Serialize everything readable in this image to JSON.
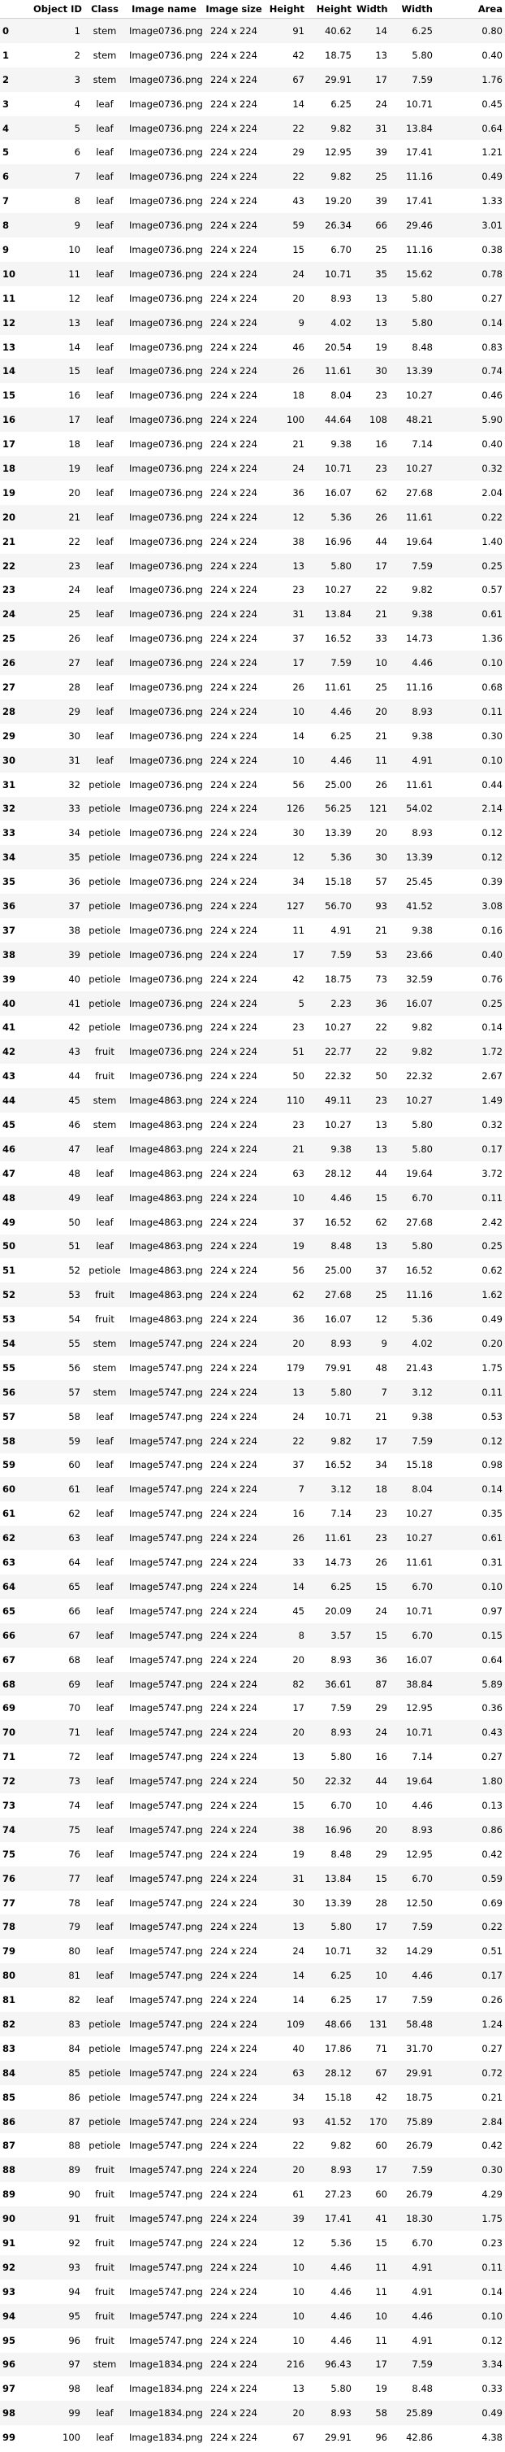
{
  "columns": [
    "",
    "Object ID",
    "Class",
    "Image name",
    "Image size",
    "Height",
    "Height",
    "Width",
    "Width",
    "Area"
  ],
  "rows": [
    [
      "0",
      "1",
      "stem",
      "Image0736.png",
      "224 x 224",
      "91",
      "40.62",
      "14",
      "6.25",
      "0.80"
    ],
    [
      "1",
      "2",
      "stem",
      "Image0736.png",
      "224 x 224",
      "42",
      "18.75",
      "13",
      "5.80",
      "0.40"
    ],
    [
      "2",
      "3",
      "stem",
      "Image0736.png",
      "224 x 224",
      "67",
      "29.91",
      "17",
      "7.59",
      "1.76"
    ],
    [
      "3",
      "4",
      "leaf",
      "Image0736.png",
      "224 x 224",
      "14",
      "6.25",
      "24",
      "10.71",
      "0.45"
    ],
    [
      "4",
      "5",
      "leaf",
      "Image0736.png",
      "224 x 224",
      "22",
      "9.82",
      "31",
      "13.84",
      "0.64"
    ],
    [
      "5",
      "6",
      "leaf",
      "Image0736.png",
      "224 x 224",
      "29",
      "12.95",
      "39",
      "17.41",
      "1.21"
    ],
    [
      "6",
      "7",
      "leaf",
      "Image0736.png",
      "224 x 224",
      "22",
      "9.82",
      "25",
      "11.16",
      "0.49"
    ],
    [
      "7",
      "8",
      "leaf",
      "Image0736.png",
      "224 x 224",
      "43",
      "19.20",
      "39",
      "17.41",
      "1.33"
    ],
    [
      "8",
      "9",
      "leaf",
      "Image0736.png",
      "224 x 224",
      "59",
      "26.34",
      "66",
      "29.46",
      "3.01"
    ],
    [
      "9",
      "10",
      "leaf",
      "Image0736.png",
      "224 x 224",
      "15",
      "6.70",
      "25",
      "11.16",
      "0.38"
    ],
    [
      "10",
      "11",
      "leaf",
      "Image0736.png",
      "224 x 224",
      "24",
      "10.71",
      "35",
      "15.62",
      "0.78"
    ],
    [
      "11",
      "12",
      "leaf",
      "Image0736.png",
      "224 x 224",
      "20",
      "8.93",
      "13",
      "5.80",
      "0.27"
    ],
    [
      "12",
      "13",
      "leaf",
      "Image0736.png",
      "224 x 224",
      "9",
      "4.02",
      "13",
      "5.80",
      "0.14"
    ],
    [
      "13",
      "14",
      "leaf",
      "Image0736.png",
      "224 x 224",
      "46",
      "20.54",
      "19",
      "8.48",
      "0.83"
    ],
    [
      "14",
      "15",
      "leaf",
      "Image0736.png",
      "224 x 224",
      "26",
      "11.61",
      "30",
      "13.39",
      "0.74"
    ],
    [
      "15",
      "16",
      "leaf",
      "Image0736.png",
      "224 x 224",
      "18",
      "8.04",
      "23",
      "10.27",
      "0.46"
    ],
    [
      "16",
      "17",
      "leaf",
      "Image0736.png",
      "224 x 224",
      "100",
      "44.64",
      "108",
      "48.21",
      "5.90"
    ],
    [
      "17",
      "18",
      "leaf",
      "Image0736.png",
      "224 x 224",
      "21",
      "9.38",
      "16",
      "7.14",
      "0.40"
    ],
    [
      "18",
      "19",
      "leaf",
      "Image0736.png",
      "224 x 224",
      "24",
      "10.71",
      "23",
      "10.27",
      "0.32"
    ],
    [
      "19",
      "20",
      "leaf",
      "Image0736.png",
      "224 x 224",
      "36",
      "16.07",
      "62",
      "27.68",
      "2.04"
    ],
    [
      "20",
      "21",
      "leaf",
      "Image0736.png",
      "224 x 224",
      "12",
      "5.36",
      "26",
      "11.61",
      "0.22"
    ],
    [
      "21",
      "22",
      "leaf",
      "Image0736.png",
      "224 x 224",
      "38",
      "16.96",
      "44",
      "19.64",
      "1.40"
    ],
    [
      "22",
      "23",
      "leaf",
      "Image0736.png",
      "224 x 224",
      "13",
      "5.80",
      "17",
      "7.59",
      "0.25"
    ],
    [
      "23",
      "24",
      "leaf",
      "Image0736.png",
      "224 x 224",
      "23",
      "10.27",
      "22",
      "9.82",
      "0.57"
    ],
    [
      "24",
      "25",
      "leaf",
      "Image0736.png",
      "224 x 224",
      "31",
      "13.84",
      "21",
      "9.38",
      "0.61"
    ],
    [
      "25",
      "26",
      "leaf",
      "Image0736.png",
      "224 x 224",
      "37",
      "16.52",
      "33",
      "14.73",
      "1.36"
    ],
    [
      "26",
      "27",
      "leaf",
      "Image0736.png",
      "224 x 224",
      "17",
      "7.59",
      "10",
      "4.46",
      "0.10"
    ],
    [
      "27",
      "28",
      "leaf",
      "Image0736.png",
      "224 x 224",
      "26",
      "11.61",
      "25",
      "11.16",
      "0.68"
    ],
    [
      "28",
      "29",
      "leaf",
      "Image0736.png",
      "224 x 224",
      "10",
      "4.46",
      "20",
      "8.93",
      "0.11"
    ],
    [
      "29",
      "30",
      "leaf",
      "Image0736.png",
      "224 x 224",
      "14",
      "6.25",
      "21",
      "9.38",
      "0.30"
    ],
    [
      "30",
      "31",
      "leaf",
      "Image0736.png",
      "224 x 224",
      "10",
      "4.46",
      "11",
      "4.91",
      "0.10"
    ],
    [
      "31",
      "32",
      "petiole",
      "Image0736.png",
      "224 x 224",
      "56",
      "25.00",
      "26",
      "11.61",
      "0.44"
    ],
    [
      "32",
      "33",
      "petiole",
      "Image0736.png",
      "224 x 224",
      "126",
      "56.25",
      "121",
      "54.02",
      "2.14"
    ],
    [
      "33",
      "34",
      "petiole",
      "Image0736.png",
      "224 x 224",
      "30",
      "13.39",
      "20",
      "8.93",
      "0.12"
    ],
    [
      "34",
      "35",
      "petiole",
      "Image0736.png",
      "224 x 224",
      "12",
      "5.36",
      "30",
      "13.39",
      "0.12"
    ],
    [
      "35",
      "36",
      "petiole",
      "Image0736.png",
      "224 x 224",
      "34",
      "15.18",
      "57",
      "25.45",
      "0.39"
    ],
    [
      "36",
      "37",
      "petiole",
      "Image0736.png",
      "224 x 224",
      "127",
      "56.70",
      "93",
      "41.52",
      "3.08"
    ],
    [
      "37",
      "38",
      "petiole",
      "Image0736.png",
      "224 x 224",
      "11",
      "4.91",
      "21",
      "9.38",
      "0.16"
    ],
    [
      "38",
      "39",
      "petiole",
      "Image0736.png",
      "224 x 224",
      "17",
      "7.59",
      "53",
      "23.66",
      "0.40"
    ],
    [
      "39",
      "40",
      "petiole",
      "Image0736.png",
      "224 x 224",
      "42",
      "18.75",
      "73",
      "32.59",
      "0.76"
    ],
    [
      "40",
      "41",
      "petiole",
      "Image0736.png",
      "224 x 224",
      "5",
      "2.23",
      "36",
      "16.07",
      "0.25"
    ],
    [
      "41",
      "42",
      "petiole",
      "Image0736.png",
      "224 x 224",
      "23",
      "10.27",
      "22",
      "9.82",
      "0.14"
    ],
    [
      "42",
      "43",
      "fruit",
      "Image0736.png",
      "224 x 224",
      "51",
      "22.77",
      "22",
      "9.82",
      "1.72"
    ],
    [
      "43",
      "44",
      "fruit",
      "Image0736.png",
      "224 x 224",
      "50",
      "22.32",
      "50",
      "22.32",
      "2.67"
    ],
    [
      "44",
      "45",
      "stem",
      "Image4863.png",
      "224 x 224",
      "110",
      "49.11",
      "23",
      "10.27",
      "1.49"
    ],
    [
      "45",
      "46",
      "stem",
      "Image4863.png",
      "224 x 224",
      "23",
      "10.27",
      "13",
      "5.80",
      "0.32"
    ],
    [
      "46",
      "47",
      "leaf",
      "Image4863.png",
      "224 x 224",
      "21",
      "9.38",
      "13",
      "5.80",
      "0.17"
    ],
    [
      "47",
      "48",
      "leaf",
      "Image4863.png",
      "224 x 224",
      "63",
      "28.12",
      "44",
      "19.64",
      "3.72"
    ],
    [
      "48",
      "49",
      "leaf",
      "Image4863.png",
      "224 x 224",
      "10",
      "4.46",
      "15",
      "6.70",
      "0.11"
    ],
    [
      "49",
      "50",
      "leaf",
      "Image4863.png",
      "224 x 224",
      "37",
      "16.52",
      "62",
      "27.68",
      "2.42"
    ],
    [
      "50",
      "51",
      "leaf",
      "Image4863.png",
      "224 x 224",
      "19",
      "8.48",
      "13",
      "5.80",
      "0.25"
    ],
    [
      "51",
      "52",
      "petiole",
      "Image4863.png",
      "224 x 224",
      "56",
      "25.00",
      "37",
      "16.52",
      "0.62"
    ],
    [
      "52",
      "53",
      "fruit",
      "Image4863.png",
      "224 x 224",
      "62",
      "27.68",
      "25",
      "11.16",
      "1.62"
    ],
    [
      "53",
      "54",
      "fruit",
      "Image4863.png",
      "224 x 224",
      "36",
      "16.07",
      "12",
      "5.36",
      "0.49"
    ],
    [
      "54",
      "55",
      "stem",
      "Image5747.png",
      "224 x 224",
      "20",
      "8.93",
      "9",
      "4.02",
      "0.20"
    ],
    [
      "55",
      "56",
      "stem",
      "Image5747.png",
      "224 x 224",
      "179",
      "79.91",
      "48",
      "21.43",
      "1.75"
    ],
    [
      "56",
      "57",
      "stem",
      "Image5747.png",
      "224 x 224",
      "13",
      "5.80",
      "7",
      "3.12",
      "0.11"
    ],
    [
      "57",
      "58",
      "leaf",
      "Image5747.png",
      "224 x 224",
      "24",
      "10.71",
      "21",
      "9.38",
      "0.53"
    ],
    [
      "58",
      "59",
      "leaf",
      "Image5747.png",
      "224 x 224",
      "22",
      "9.82",
      "17",
      "7.59",
      "0.12"
    ],
    [
      "59",
      "60",
      "leaf",
      "Image5747.png",
      "224 x 224",
      "37",
      "16.52",
      "34",
      "15.18",
      "0.98"
    ],
    [
      "60",
      "61",
      "leaf",
      "Image5747.png",
      "224 x 224",
      "7",
      "3.12",
      "18",
      "8.04",
      "0.14"
    ],
    [
      "61",
      "62",
      "leaf",
      "Image5747.png",
      "224 x 224",
      "16",
      "7.14",
      "23",
      "10.27",
      "0.35"
    ],
    [
      "62",
      "63",
      "leaf",
      "Image5747.png",
      "224 x 224",
      "26",
      "11.61",
      "23",
      "10.27",
      "0.61"
    ],
    [
      "63",
      "64",
      "leaf",
      "Image5747.png",
      "224 x 224",
      "33",
      "14.73",
      "26",
      "11.61",
      "0.31"
    ],
    [
      "64",
      "65",
      "leaf",
      "Image5747.png",
      "224 x 224",
      "14",
      "6.25",
      "15",
      "6.70",
      "0.10"
    ],
    [
      "65",
      "66",
      "leaf",
      "Image5747.png",
      "224 x 224",
      "45",
      "20.09",
      "24",
      "10.71",
      "0.97"
    ],
    [
      "66",
      "67",
      "leaf",
      "Image5747.png",
      "224 x 224",
      "8",
      "3.57",
      "15",
      "6.70",
      "0.15"
    ],
    [
      "67",
      "68",
      "leaf",
      "Image5747.png",
      "224 x 224",
      "20",
      "8.93",
      "36",
      "16.07",
      "0.64"
    ],
    [
      "68",
      "69",
      "leaf",
      "Image5747.png",
      "224 x 224",
      "82",
      "36.61",
      "87",
      "38.84",
      "5.89"
    ],
    [
      "69",
      "70",
      "leaf",
      "Image5747.png",
      "224 x 224",
      "17",
      "7.59",
      "29",
      "12.95",
      "0.36"
    ],
    [
      "70",
      "71",
      "leaf",
      "Image5747.png",
      "224 x 224",
      "20",
      "8.93",
      "24",
      "10.71",
      "0.43"
    ],
    [
      "71",
      "72",
      "leaf",
      "Image5747.png",
      "224 x 224",
      "13",
      "5.80",
      "16",
      "7.14",
      "0.27"
    ],
    [
      "72",
      "73",
      "leaf",
      "Image5747.png",
      "224 x 224",
      "50",
      "22.32",
      "44",
      "19.64",
      "1.80"
    ],
    [
      "73",
      "74",
      "leaf",
      "Image5747.png",
      "224 x 224",
      "15",
      "6.70",
      "10",
      "4.46",
      "0.13"
    ],
    [
      "74",
      "75",
      "leaf",
      "Image5747.png",
      "224 x 224",
      "38",
      "16.96",
      "20",
      "8.93",
      "0.86"
    ],
    [
      "75",
      "76",
      "leaf",
      "Image5747.png",
      "224 x 224",
      "19",
      "8.48",
      "29",
      "12.95",
      "0.42"
    ],
    [
      "76",
      "77",
      "leaf",
      "Image5747.png",
      "224 x 224",
      "31",
      "13.84",
      "15",
      "6.70",
      "0.59"
    ],
    [
      "77",
      "78",
      "leaf",
      "Image5747.png",
      "224 x 224",
      "30",
      "13.39",
      "28",
      "12.50",
      "0.69"
    ],
    [
      "78",
      "79",
      "leaf",
      "Image5747.png",
      "224 x 224",
      "13",
      "5.80",
      "17",
      "7.59",
      "0.22"
    ],
    [
      "79",
      "80",
      "leaf",
      "Image5747.png",
      "224 x 224",
      "24",
      "10.71",
      "32",
      "14.29",
      "0.51"
    ],
    [
      "80",
      "81",
      "leaf",
      "Image5747.png",
      "224 x 224",
      "14",
      "6.25",
      "10",
      "4.46",
      "0.17"
    ],
    [
      "81",
      "82",
      "leaf",
      "Image5747.png",
      "224 x 224",
      "14",
      "6.25",
      "17",
      "7.59",
      "0.26"
    ],
    [
      "82",
      "83",
      "petiole",
      "Image5747.png",
      "224 x 224",
      "109",
      "48.66",
      "131",
      "58.48",
      "1.24"
    ],
    [
      "83",
      "84",
      "petiole",
      "Image5747.png",
      "224 x 224",
      "40",
      "17.86",
      "71",
      "31.70",
      "0.27"
    ],
    [
      "84",
      "85",
      "petiole",
      "Image5747.png",
      "224 x 224",
      "63",
      "28.12",
      "67",
      "29.91",
      "0.72"
    ],
    [
      "85",
      "86",
      "petiole",
      "Image5747.png",
      "224 x 224",
      "34",
      "15.18",
      "42",
      "18.75",
      "0.21"
    ],
    [
      "86",
      "87",
      "petiole",
      "Image5747.png",
      "224 x 224",
      "93",
      "41.52",
      "170",
      "75.89",
      "2.84"
    ],
    [
      "87",
      "88",
      "petiole",
      "Image5747.png",
      "224 x 224",
      "22",
      "9.82",
      "60",
      "26.79",
      "0.42"
    ],
    [
      "88",
      "89",
      "fruit",
      "Image5747.png",
      "224 x 224",
      "20",
      "8.93",
      "17",
      "7.59",
      "0.30"
    ],
    [
      "89",
      "90",
      "fruit",
      "Image5747.png",
      "224 x 224",
      "61",
      "27.23",
      "60",
      "26.79",
      "4.29"
    ],
    [
      "90",
      "91",
      "fruit",
      "Image5747.png",
      "224 x 224",
      "39",
      "17.41",
      "41",
      "18.30",
      "1.75"
    ],
    [
      "91",
      "92",
      "fruit",
      "Image5747.png",
      "224 x 224",
      "12",
      "5.36",
      "15",
      "6.70",
      "0.23"
    ],
    [
      "92",
      "93",
      "fruit",
      "Image5747.png",
      "224 x 224",
      "10",
      "4.46",
      "11",
      "4.91",
      "0.11"
    ],
    [
      "93",
      "94",
      "fruit",
      "Image5747.png",
      "224 x 224",
      "10",
      "4.46",
      "11",
      "4.91",
      "0.14"
    ],
    [
      "94",
      "95",
      "fruit",
      "Image5747.png",
      "224 x 224",
      "10",
      "4.46",
      "10",
      "4.46",
      "0.10"
    ],
    [
      "95",
      "96",
      "fruit",
      "Image5747.png",
      "224 x 224",
      "10",
      "4.46",
      "11",
      "4.91",
      "0.12"
    ],
    [
      "96",
      "97",
      "stem",
      "Image1834.png",
      "224 x 224",
      "216",
      "96.43",
      "17",
      "7.59",
      "3.34"
    ],
    [
      "97",
      "98",
      "leaf",
      "Image1834.png",
      "224 x 224",
      "13",
      "5.80",
      "19",
      "8.48",
      "0.33"
    ],
    [
      "98",
      "99",
      "leaf",
      "Image1834.png",
      "224 x 224",
      "20",
      "8.93",
      "58",
      "25.89",
      "0.49"
    ],
    [
      "99",
      "100",
      "leaf",
      "Image1834.png",
      "224 x 224",
      "67",
      "29.91",
      "96",
      "42.86",
      "4.38"
    ]
  ]
}
